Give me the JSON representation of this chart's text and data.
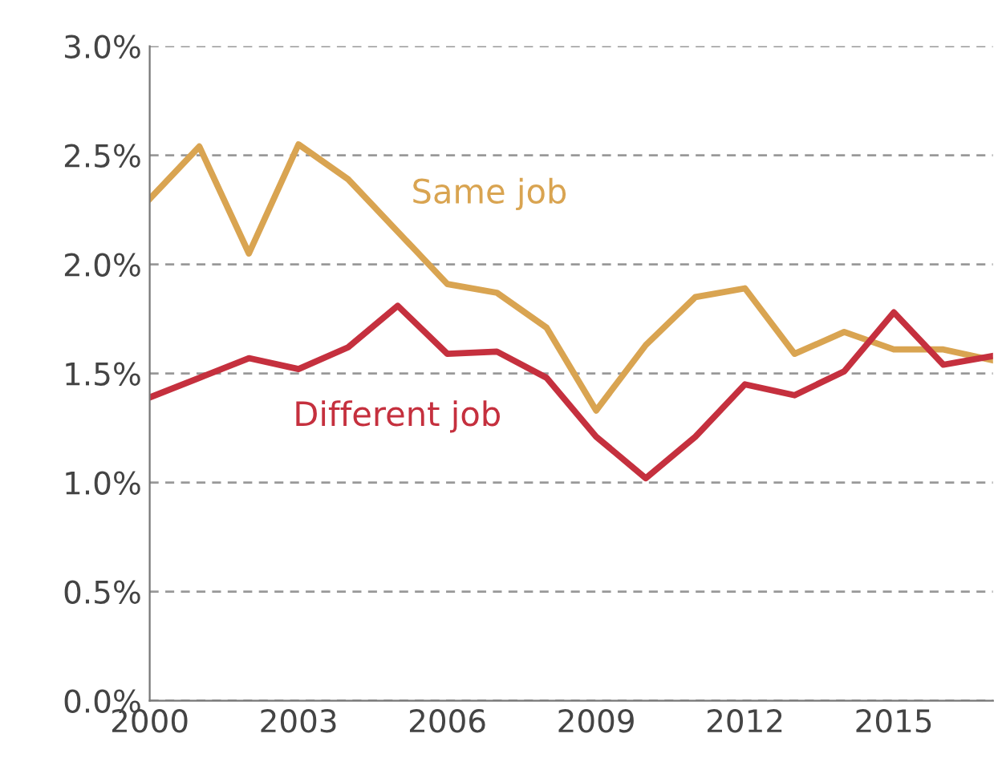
{
  "chart_data": {
    "type": "line",
    "x": [
      2000,
      2001,
      2002,
      2003,
      2004,
      2005,
      2006,
      2007,
      2008,
      2009,
      2010,
      2011,
      2012,
      2013,
      2014,
      2015,
      2016,
      2017
    ],
    "series": [
      {
        "name": "Same job",
        "color": "#d9a451",
        "values": [
          2.3,
          2.54,
          2.05,
          2.55,
          2.39,
          2.15,
          1.91,
          1.87,
          1.71,
          1.33,
          1.63,
          1.85,
          1.89,
          1.59,
          1.69,
          1.61,
          1.61,
          1.56
        ]
      },
      {
        "name": "Different job",
        "color": "#c5303e",
        "values": [
          1.39,
          1.48,
          1.57,
          1.52,
          1.62,
          1.81,
          1.59,
          1.6,
          1.48,
          1.21,
          1.02,
          1.21,
          1.45,
          1.4,
          1.51,
          1.78,
          1.54,
          1.58
        ]
      }
    ],
    "xlim": [
      2000,
      2017
    ],
    "xticks": [
      2000,
      2003,
      2006,
      2009,
      2012,
      2015
    ],
    "ylim": [
      0,
      3
    ],
    "yticks": [
      {
        "value": 0,
        "label": "0.0%"
      },
      {
        "value": 0.5,
        "label": "0.5%"
      },
      {
        "value": 1,
        "label": "1.0%"
      },
      {
        "value": 1.5,
        "label": "1.5%"
      },
      {
        "value": 2,
        "label": "2.0%"
      },
      {
        "value": 2.5,
        "label": "2.5%"
      },
      {
        "value": 3,
        "label": "3.0%"
      }
    ],
    "grid": "y",
    "line_style": "solid",
    "marker": "none"
  }
}
